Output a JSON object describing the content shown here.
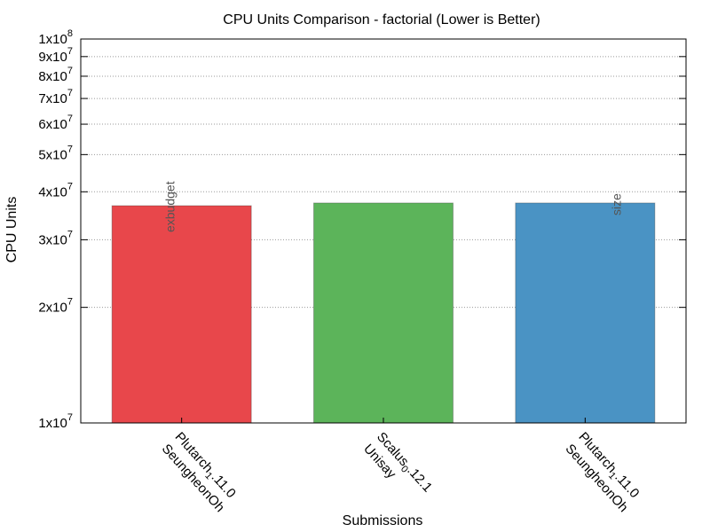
{
  "chart_data": {
    "type": "bar",
    "title": "CPU Units Comparison - factorial (Lower is Better)",
    "xlabel": "Submissions",
    "ylabel": "CPU Units",
    "yscale": "log",
    "ylim": [
      10000000,
      100000000
    ],
    "grid": "y-major-dotted",
    "categories": [
      {
        "line1": "Plutarch",
        "sub": "1",
        "line1_suffix": ".11.0",
        "line2": "SeungheonOh"
      },
      {
        "line1": "Scalus",
        "sub": "0",
        "line1_suffix": ".12.1",
        "line2": "Unisay"
      },
      {
        "line1": "Plutarch",
        "sub": "1",
        "line1_suffix": ".11.0",
        "line2": "SeungheonOh"
      }
    ],
    "values": [
      36800000,
      37400000,
      37400000
    ],
    "bar_colors": [
      "#e8474b",
      "#5cb45a",
      "#4a93c4"
    ],
    "bar_labels": [
      "exbudget",
      "",
      "size"
    ],
    "yticks": [
      {
        "value": 10000000,
        "base": "1x10",
        "exp": "7"
      },
      {
        "value": 20000000,
        "base": "2x10",
        "exp": "7"
      },
      {
        "value": 30000000,
        "base": "3x10",
        "exp": "7"
      },
      {
        "value": 40000000,
        "base": "4x10",
        "exp": "7"
      },
      {
        "value": 50000000,
        "base": "5x10",
        "exp": "7"
      },
      {
        "value": 60000000,
        "base": "6x10",
        "exp": "7"
      },
      {
        "value": 70000000,
        "base": "7x10",
        "exp": "7"
      },
      {
        "value": 80000000,
        "base": "8x10",
        "exp": "7"
      },
      {
        "value": 90000000,
        "base": "9x10",
        "exp": "7"
      },
      {
        "value": 100000000,
        "base": "1x10",
        "exp": "8"
      }
    ]
  }
}
